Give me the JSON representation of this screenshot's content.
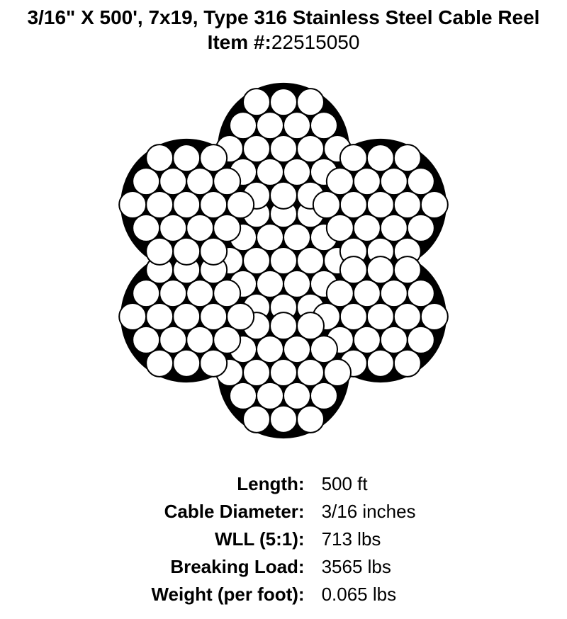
{
  "header": {
    "title": "3/16\" X 500', 7x19, Type 316 Stainless Steel Cable Reel",
    "item_label": "Item #:",
    "item_number": "22515050"
  },
  "diagram": {
    "type": "cable-cross-section",
    "structure": "7x19",
    "strand_count": 7,
    "wires_per_strand": 19,
    "outer_radius": 250,
    "strand_center_radius": 158,
    "strand_angles_deg": [
      0,
      60,
      120,
      180,
      240,
      300
    ],
    "wire_radius": 19,
    "colors": {
      "background": "#ffffff",
      "fill": "#000000",
      "wire_fill": "#ffffff",
      "wire_stroke": "#000000",
      "wire_stroke_width": 2
    }
  },
  "specs": {
    "rows": [
      {
        "label": "Length:",
        "value": "500 ft"
      },
      {
        "label": "Cable Diameter:",
        "value": "3/16 inches"
      },
      {
        "label": "WLL (5:1):",
        "value": "713 lbs"
      },
      {
        "label": "Breaking Load:",
        "value": "3565 lbs"
      },
      {
        "label": "Weight (per foot):",
        "value": "0.065 lbs"
      }
    ],
    "label_fontsize": 26,
    "value_fontsize": 26,
    "label_weight": "bold",
    "value_weight": "normal"
  }
}
